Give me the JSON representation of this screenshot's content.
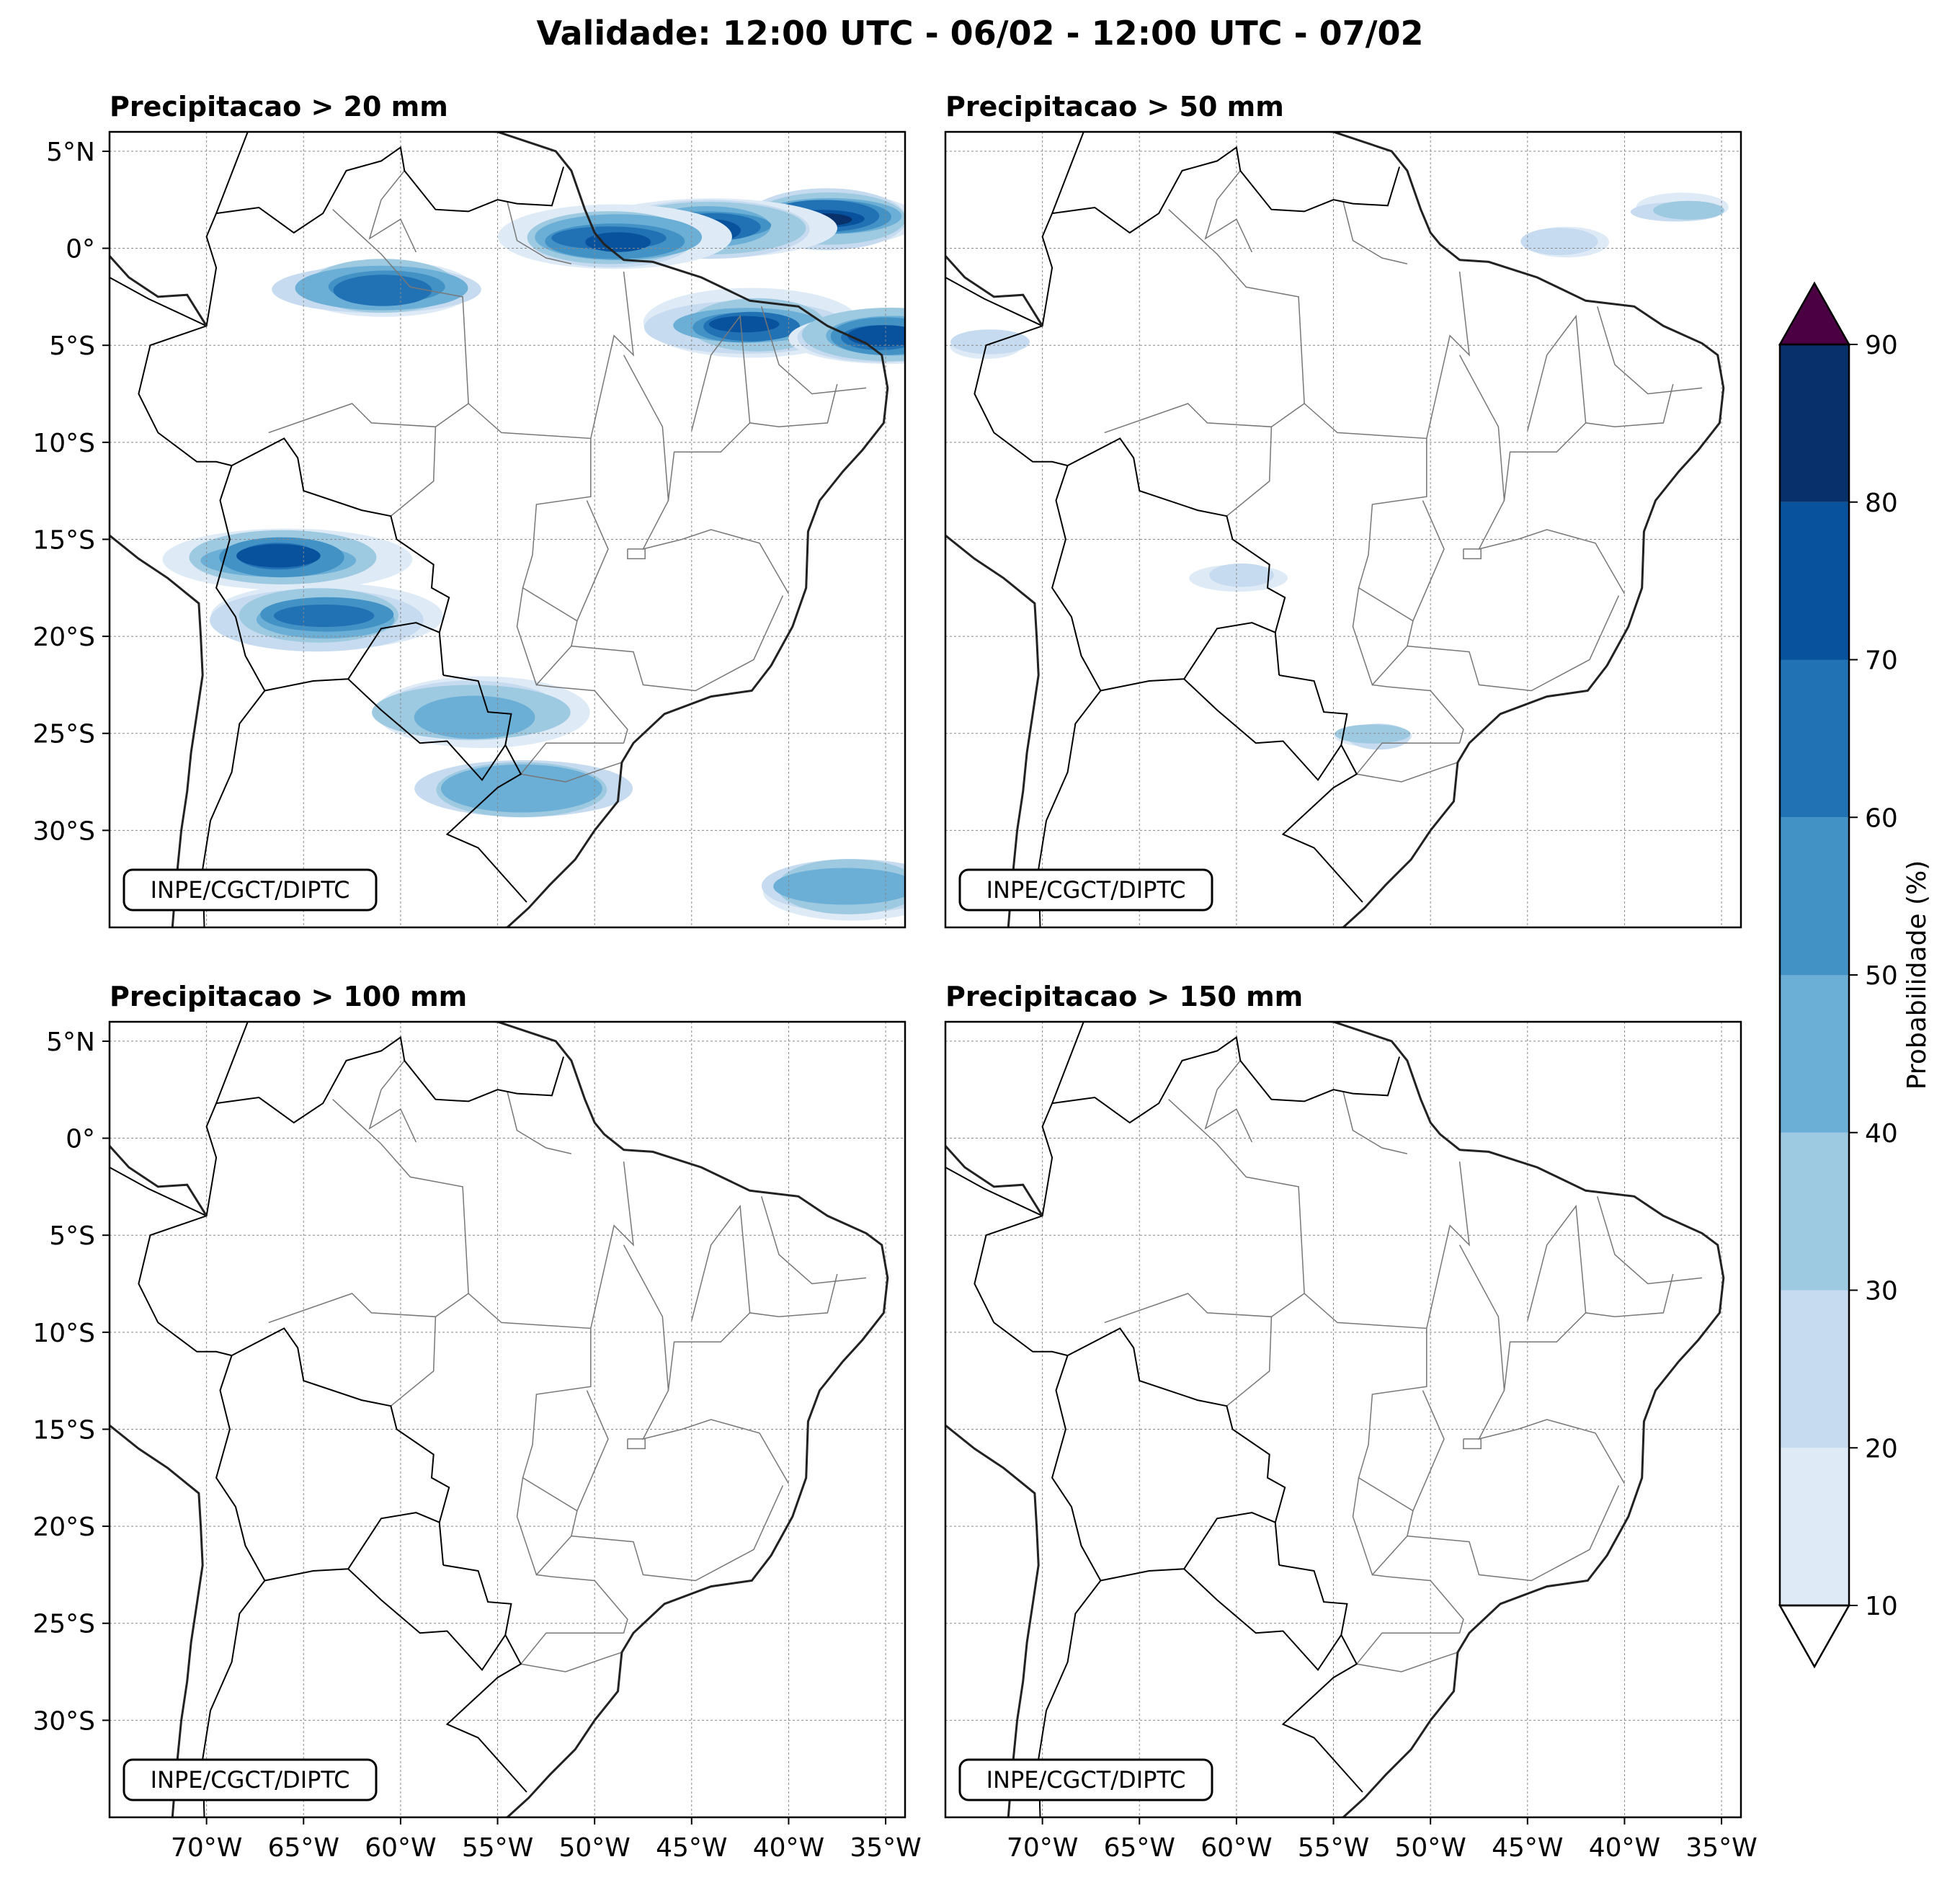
{
  "title": "Validade: 12:00 UTC - 06/02 - 12:00 UTC - 07/02",
  "panels": [
    {
      "id": "p20",
      "title": "Precipitacao > 20 mm",
      "credit": "INPE/CGCT/DIPTC"
    },
    {
      "id": "p50",
      "title": "Precipitacao > 50 mm",
      "credit": "INPE/CGCT/DIPTC"
    },
    {
      "id": "p100",
      "title": "Precipitacao > 100 mm",
      "credit": "INPE/CGCT/DIPTC"
    },
    {
      "id": "p150",
      "title": "Precipitacao > 150 mm",
      "credit": "INPE/CGCT/DIPTC"
    }
  ],
  "lat_labels": [
    "5°N",
    "0°",
    "5°S",
    "10°S",
    "15°S",
    "20°S",
    "25°S",
    "30°S"
  ],
  "lon_labels": [
    "70°W",
    "65°W",
    "60°W",
    "55°W",
    "50°W",
    "45°W",
    "40°W",
    "35°W"
  ],
  "colorbar": {
    "label": "Probabilidade (%)",
    "ticks": [
      "10",
      "20",
      "30",
      "40",
      "50",
      "60",
      "70",
      "80",
      "90"
    ],
    "colors": [
      "#deebf7",
      "#c6dbef",
      "#9ecae1",
      "#6baed6",
      "#4292c6",
      "#2171b5",
      "#08519c",
      "#08306b"
    ],
    "over_color": "#4a0042",
    "under_color": "#ffffff"
  },
  "chart_data": {
    "type": "heatmap",
    "variable": "Probabilidade (%)",
    "levels": [
      10,
      20,
      30,
      40,
      50,
      60,
      70,
      80,
      90
    ],
    "extent": {
      "lon": [
        -75,
        -34
      ],
      "lat": [
        -35,
        6
      ]
    },
    "panels": [
      {
        "title": "Precipitacao > 20 mm",
        "areas": [
          {
            "lon": -38,
            "lat": 1.5,
            "p": 85
          },
          {
            "lon": -44,
            "lat": 1,
            "p": 75
          },
          {
            "lon": -49,
            "lat": 0.5,
            "p": 70
          },
          {
            "lon": -42,
            "lat": -4,
            "p": 70
          },
          {
            "lon": -35,
            "lat": -4.5,
            "p": 70
          },
          {
            "lon": -61,
            "lat": -2,
            "p": 65
          },
          {
            "lon": -66,
            "lat": -16,
            "p": 75
          },
          {
            "lon": -64,
            "lat": -19,
            "p": 60
          },
          {
            "lon": -56,
            "lat": -24,
            "p": 40
          },
          {
            "lon": -54,
            "lat": -28,
            "p": 40
          },
          {
            "lon": -37,
            "lat": -33,
            "p": 40
          }
        ]
      },
      {
        "title": "Precipitacao > 50 mm",
        "areas": [
          {
            "lon": -37,
            "lat": 2,
            "p": 30
          },
          {
            "lon": -43,
            "lat": 0.5,
            "p": 20
          },
          {
            "lon": -53,
            "lat": -25,
            "p": 30
          },
          {
            "lon": -73,
            "lat": -5,
            "p": 20
          },
          {
            "lon": -60,
            "lat": -17,
            "p": 20
          }
        ]
      },
      {
        "title": "Precipitacao > 100 mm",
        "areas": []
      },
      {
        "title": "Precipitacao > 150 mm",
        "areas": []
      }
    ]
  }
}
